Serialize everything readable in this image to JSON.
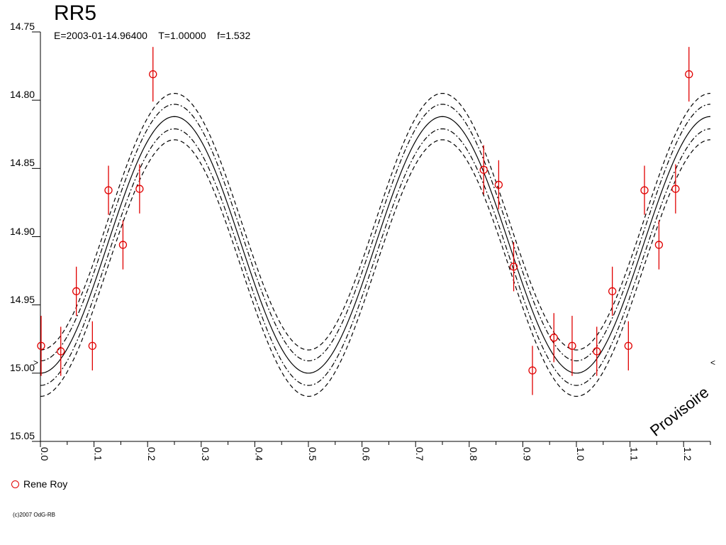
{
  "header": {
    "title": "RR5",
    "subtitle": "E=2003-01-14.96400    T=1.00000    f=1.532"
  },
  "legend": {
    "label": "Rene Roy",
    "color": "#e00000"
  },
  "watermark": "Provisoire",
  "credit": "(c)2007 OdG-RB",
  "colors": {
    "data": "#e00000",
    "model": "#000000"
  },
  "chart_data": {
    "type": "scatter",
    "title": "RR5",
    "xlim": [
      0.0,
      1.25
    ],
    "ylim": [
      14.75,
      15.05
    ],
    "y_inverted": true,
    "xticks": [
      "0.0",
      "0.1",
      "0.2",
      "0.3",
      "0.4",
      "0.5",
      "0.6",
      "0.7",
      "0.8",
      "0.9",
      "1.0",
      "1.1",
      "1.2"
    ],
    "yticks": [
      "14.75",
      "14.80",
      "14.85",
      "14.90",
      "14.95",
      "15.00",
      "15.05"
    ],
    "model": {
      "type": "sinusoid",
      "center": 14.906,
      "amplitude": 0.094,
      "period": 0.5,
      "max_brightness_phase": 0.25,
      "band_inner": 0.009,
      "band_outer": 0.017
    },
    "series": [
      {
        "name": "Rene Roy",
        "color": "#e00000",
        "points": [
          {
            "x": -0.007,
            "y": 14.98,
            "err": 0.022
          },
          {
            "x": 0.038,
            "y": 14.984,
            "err": 0.018
          },
          {
            "x": 0.067,
            "y": 14.94,
            "err": 0.018
          },
          {
            "x": 0.097,
            "y": 14.98,
            "err": 0.018
          },
          {
            "x": 0.127,
            "y": 14.866,
            "err": 0.018
          },
          {
            "x": 0.154,
            "y": 14.906,
            "err": 0.018
          },
          {
            "x": 0.185,
            "y": 14.865,
            "err": 0.018
          },
          {
            "x": 0.21,
            "y": 14.781,
            "err": 0.02
          },
          {
            "x": 0.827,
            "y": 14.851,
            "err": 0.018
          },
          {
            "x": 0.855,
            "y": 14.862,
            "err": 0.018
          },
          {
            "x": 0.883,
            "y": 14.922,
            "err": 0.018
          },
          {
            "x": 0.918,
            "y": 14.998,
            "err": 0.018
          },
          {
            "x": 0.958,
            "y": 14.974,
            "err": 0.018
          },
          {
            "x": 0.992,
            "y": 14.98,
            "err": 0.022
          },
          {
            "x": 1.038,
            "y": 14.984,
            "err": 0.018
          },
          {
            "x": 1.067,
            "y": 14.94,
            "err": 0.018
          },
          {
            "x": 1.097,
            "y": 14.98,
            "err": 0.018
          },
          {
            "x": 1.127,
            "y": 14.866,
            "err": 0.018
          },
          {
            "x": 1.154,
            "y": 14.906,
            "err": 0.018
          },
          {
            "x": 1.185,
            "y": 14.865,
            "err": 0.018
          },
          {
            "x": 1.21,
            "y": 14.781,
            "err": 0.02
          }
        ]
      }
    ]
  }
}
